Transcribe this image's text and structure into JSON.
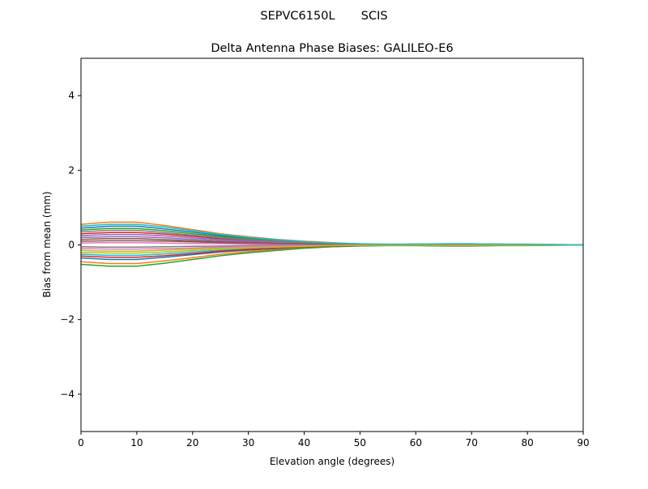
{
  "figure": {
    "suptitle": "SEPVC6150L       SCIS"
  },
  "chart_data": {
    "type": "line",
    "title": "Delta Antenna Phase Biases: GALILEO-E6",
    "xlabel": "Elevation angle (degrees)",
    "ylabel": "Bias from mean (mm)",
    "xlim": [
      0,
      90
    ],
    "ylim": [
      -5,
      5
    ],
    "xticks": [
      0,
      10,
      20,
      30,
      40,
      50,
      60,
      70,
      80,
      90
    ],
    "yticks": [
      -4,
      -2,
      0,
      2,
      4
    ],
    "ytick_labels": [
      "−4",
      "−2",
      "0",
      "2",
      "4"
    ],
    "grid": false,
    "legend": "none",
    "colors": [
      "#1f77b4",
      "#ff7f0e",
      "#2ca02c",
      "#d62728",
      "#9467bd",
      "#8c564b",
      "#e377c2",
      "#7f7f7f",
      "#bcbd22",
      "#17becf"
    ],
    "x": [
      0,
      5,
      10,
      15,
      20,
      25,
      30,
      35,
      40,
      45,
      50,
      55,
      60,
      65,
      70,
      75,
      80,
      85,
      90
    ],
    "series": [
      {
        "values": [
          0.45,
          0.5,
          0.5,
          0.43,
          0.34,
          0.25,
          0.18,
          0.13,
          0.08,
          0.05,
          0.02,
          0.01,
          0.02,
          0.02,
          0.02,
          0.02,
          0.01,
          0,
          0
        ]
      },
      {
        "values": [
          0.55,
          0.61,
          0.61,
          0.52,
          0.41,
          0.3,
          0.22,
          0.15,
          0.1,
          0.06,
          0.03,
          0.02,
          0.02,
          0.03,
          0.03,
          0.02,
          0.02,
          0.01,
          0
        ]
      },
      {
        "values": [
          0.4,
          0.44,
          0.44,
          0.38,
          0.3,
          0.22,
          0.16,
          0.11,
          0.07,
          0.04,
          0.02,
          0.01,
          0.02,
          0.02,
          0.02,
          0.02,
          0.01,
          0,
          0
        ]
      },
      {
        "values": [
          0.3,
          0.33,
          0.33,
          0.29,
          0.23,
          0.17,
          0.12,
          0.08,
          0.05,
          0.03,
          0.02,
          0.01,
          0.01,
          0.02,
          0.02,
          0.01,
          0.01,
          0,
          0
        ]
      },
      {
        "values": [
          0.2,
          0.22,
          0.22,
          0.19,
          0.15,
          0.11,
          0.08,
          0.06,
          0.04,
          0.02,
          0.01,
          0.01,
          0.01,
          0.01,
          0.01,
          0.01,
          0.01,
          0,
          0
        ]
      },
      {
        "values": [
          0.1,
          0.11,
          0.11,
          0.1,
          0.08,
          0.06,
          0.04,
          0.03,
          0.02,
          0.01,
          0.01,
          0,
          0,
          0.01,
          0.01,
          0,
          0,
          0,
          0
        ]
      },
      {
        "values": [
          0.05,
          0.06,
          0.06,
          0.05,
          0.04,
          0.03,
          0.02,
          0.01,
          0.01,
          0.01,
          0,
          0,
          0,
          0,
          0,
          0,
          0,
          0,
          0
        ]
      },
      {
        "values": [
          -0.05,
          -0.06,
          -0.06,
          -0.05,
          -0.04,
          -0.03,
          -0.02,
          -0.01,
          -0.01,
          -0.01,
          0,
          0,
          0,
          0,
          0,
          0,
          0,
          0,
          0
        ]
      },
      {
        "values": [
          -0.15,
          -0.17,
          -0.17,
          -0.14,
          -0.11,
          -0.08,
          -0.06,
          -0.04,
          -0.03,
          -0.02,
          -0.01,
          0,
          -0.01,
          -0.01,
          -0.01,
          -0.01,
          0,
          0,
          0
        ]
      },
      {
        "values": [
          -0.25,
          -0.28,
          -0.28,
          -0.24,
          -0.19,
          -0.14,
          -0.1,
          -0.07,
          -0.05,
          -0.03,
          -0.01,
          -0.01,
          -0.01,
          -0.01,
          -0.01,
          -0.01,
          -0.01,
          0,
          0
        ]
      },
      {
        "values": [
          -0.35,
          -0.39,
          -0.39,
          -0.33,
          -0.26,
          -0.19,
          -0.14,
          -0.1,
          -0.06,
          -0.04,
          -0.02,
          -0.01,
          -0.01,
          -0.02,
          -0.02,
          -0.01,
          -0.01,
          0,
          0
        ]
      },
      {
        "values": [
          -0.45,
          -0.5,
          -0.5,
          -0.43,
          -0.34,
          -0.25,
          -0.18,
          -0.13,
          -0.08,
          -0.05,
          -0.02,
          -0.01,
          -0.02,
          -0.02,
          -0.02,
          -0.02,
          -0.01,
          0,
          0
        ]
      },
      {
        "values": [
          -0.52,
          -0.57,
          -0.57,
          -0.49,
          -0.39,
          -0.29,
          -0.21,
          -0.15,
          -0.09,
          -0.05,
          -0.03,
          -0.02,
          -0.02,
          -0.03,
          -0.03,
          -0.02,
          -0.02,
          -0.01,
          0
        ]
      },
      {
        "values": [
          -0.3,
          -0.33,
          -0.33,
          -0.29,
          -0.23,
          -0.17,
          -0.12,
          -0.08,
          -0.05,
          -0.03,
          -0.02,
          -0.01,
          -0.01,
          -0.02,
          -0.02,
          -0.01,
          -0.01,
          0,
          0
        ]
      },
      {
        "values": [
          0.25,
          0.28,
          0.28,
          0.24,
          0.19,
          0.14,
          0.1,
          0.07,
          0.05,
          0.03,
          0.01,
          0.01,
          0.01,
          0.01,
          0.01,
          0.01,
          0.01,
          0,
          0
        ]
      },
      {
        "values": [
          0.15,
          0.17,
          0.17,
          0.14,
          0.11,
          0.08,
          0.06,
          0.04,
          0.03,
          0.02,
          0.01,
          0,
          0.01,
          0.01,
          0.01,
          0.01,
          0,
          0,
          0
        ]
      },
      {
        "values": [
          -0.1,
          -0.11,
          -0.11,
          -0.1,
          -0.08,
          -0.06,
          -0.04,
          -0.03,
          -0.02,
          -0.01,
          -0.01,
          0,
          0,
          -0.01,
          -0.01,
          0,
          0,
          0,
          0
        ]
      },
      {
        "values": [
          0.35,
          0.39,
          0.39,
          0.33,
          0.26,
          0.19,
          0.14,
          0.1,
          0.06,
          0.04,
          0.02,
          0.01,
          0.01,
          0.02,
          0.02,
          0.01,
          0.01,
          0,
          0
        ]
      },
      {
        "values": [
          -0.2,
          -0.22,
          -0.22,
          -0.19,
          -0.15,
          -0.11,
          -0.08,
          -0.06,
          -0.04,
          -0.02,
          -0.01,
          -0.01,
          -0.01,
          -0.01,
          -0.01,
          -0.01,
          -0.01,
          0,
          0
        ]
      },
      {
        "values": [
          0.5,
          0.55,
          0.55,
          0.48,
          0.38,
          0.28,
          0.2,
          0.14,
          0.09,
          0.05,
          0.03,
          0.02,
          0.02,
          0.03,
          0.03,
          0.02,
          0.02,
          0.01,
          0
        ]
      }
    ]
  }
}
